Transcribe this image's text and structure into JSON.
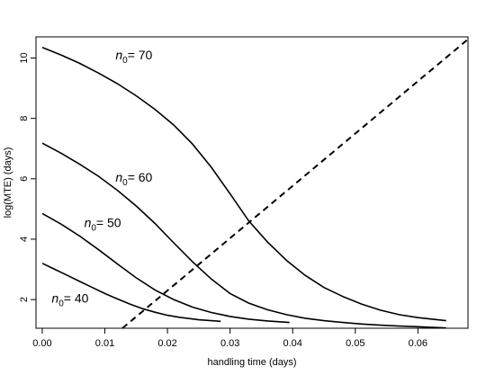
{
  "chart_data": {
    "type": "line",
    "title": "",
    "xlabel": "handling time (days)",
    "ylabel": "log(MTE) (days)",
    "xlim": [
      -0.001,
      0.068
    ],
    "ylim": [
      1.05,
      10.7
    ],
    "x_ticks": [
      0.0,
      0.01,
      0.02,
      0.03,
      0.04,
      0.05,
      0.06
    ],
    "x_tick_labels": [
      "0.00",
      "0.01",
      "0.02",
      "0.03",
      "0.04",
      "0.05",
      "0.06"
    ],
    "y_ticks": [
      2,
      4,
      6,
      8,
      10
    ],
    "y_tick_labels": [
      "2",
      "4",
      "6",
      "8",
      "10"
    ],
    "grid": false,
    "series": [
      {
        "n0": 70,
        "style": "solid",
        "points": [
          [
            0.0,
            10.35
          ],
          [
            0.003,
            10.1
          ],
          [
            0.006,
            9.82
          ],
          [
            0.009,
            9.5
          ],
          [
            0.012,
            9.15
          ],
          [
            0.015,
            8.75
          ],
          [
            0.018,
            8.3
          ],
          [
            0.021,
            7.78
          ],
          [
            0.024,
            7.15
          ],
          [
            0.027,
            6.38
          ],
          [
            0.03,
            5.5
          ],
          [
            0.033,
            4.6
          ],
          [
            0.036,
            3.9
          ],
          [
            0.039,
            3.3
          ],
          [
            0.042,
            2.8
          ],
          [
            0.045,
            2.4
          ],
          [
            0.048,
            2.1
          ],
          [
            0.051,
            1.85
          ],
          [
            0.054,
            1.65
          ],
          [
            0.057,
            1.5
          ],
          [
            0.06,
            1.4
          ],
          [
            0.0645,
            1.3
          ]
        ]
      },
      {
        "n0": 60,
        "style": "solid",
        "points": [
          [
            0.0,
            7.18
          ],
          [
            0.003,
            6.85
          ],
          [
            0.006,
            6.48
          ],
          [
            0.009,
            6.08
          ],
          [
            0.012,
            5.62
          ],
          [
            0.015,
            5.1
          ],
          [
            0.018,
            4.52
          ],
          [
            0.021,
            3.88
          ],
          [
            0.024,
            3.25
          ],
          [
            0.027,
            2.68
          ],
          [
            0.03,
            2.2
          ],
          [
            0.033,
            1.88
          ],
          [
            0.036,
            1.66
          ],
          [
            0.039,
            1.5
          ],
          [
            0.042,
            1.38
          ],
          [
            0.045,
            1.3
          ],
          [
            0.048,
            1.24
          ],
          [
            0.051,
            1.19
          ],
          [
            0.054,
            1.15
          ],
          [
            0.057,
            1.12
          ],
          [
            0.06,
            1.1
          ],
          [
            0.0645,
            1.06
          ]
        ]
      },
      {
        "n0": 50,
        "style": "solid",
        "points": [
          [
            0.0,
            4.85
          ],
          [
            0.003,
            4.5
          ],
          [
            0.006,
            4.1
          ],
          [
            0.009,
            3.65
          ],
          [
            0.012,
            3.18
          ],
          [
            0.015,
            2.72
          ],
          [
            0.018,
            2.32
          ],
          [
            0.021,
            2.0
          ],
          [
            0.024,
            1.75
          ],
          [
            0.027,
            1.57
          ],
          [
            0.03,
            1.44
          ],
          [
            0.033,
            1.35
          ],
          [
            0.036,
            1.29
          ],
          [
            0.0395,
            1.24
          ]
        ]
      },
      {
        "n0": 40,
        "style": "solid",
        "points": [
          [
            0.0,
            3.2
          ],
          [
            0.002,
            3.0
          ],
          [
            0.004,
            2.8
          ],
          [
            0.006,
            2.6
          ],
          [
            0.008,
            2.4
          ],
          [
            0.01,
            2.2
          ],
          [
            0.012,
            2.02
          ],
          [
            0.014,
            1.85
          ],
          [
            0.016,
            1.7
          ],
          [
            0.018,
            1.58
          ],
          [
            0.02,
            1.48
          ],
          [
            0.022,
            1.41
          ],
          [
            0.025,
            1.33
          ],
          [
            0.0285,
            1.28
          ]
        ]
      },
      {
        "style": "dashed",
        "points": [
          [
            0.0128,
            1.05
          ],
          [
            0.068,
            10.62
          ]
        ]
      }
    ],
    "annotations": [
      {
        "italic": "n",
        "sub": "0",
        "text": "= 70",
        "x": 0.0117,
        "y": 9.95
      },
      {
        "italic": "n",
        "sub": "0",
        "text": "= 60",
        "x": 0.0117,
        "y": 5.9
      },
      {
        "italic": "n",
        "sub": "0",
        "text": "= 50",
        "x": 0.0067,
        "y": 4.4
      },
      {
        "italic": "n",
        "sub": "0",
        "text": "= 40",
        "x": 0.0015,
        "y": 1.9
      }
    ]
  }
}
